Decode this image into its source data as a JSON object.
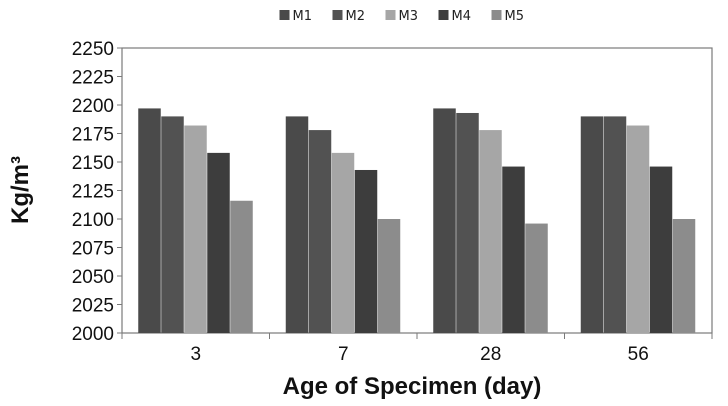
{
  "chart_data": {
    "type": "bar",
    "title": "",
    "xlabel": "Age of Specimen (day)",
    "ylabel": "Kg/m³",
    "categories": [
      "3",
      "7",
      "28",
      "56"
    ],
    "ylim": [
      2000,
      2250
    ],
    "yticks": [
      2000,
      2025,
      2050,
      2075,
      2100,
      2125,
      2150,
      2175,
      2200,
      2225,
      2250
    ],
    "grid": false,
    "legend": "top",
    "series": [
      {
        "name": "M1",
        "color": "#4a4a4a",
        "values": [
          2197,
          2190,
          2197,
          2190
        ]
      },
      {
        "name": "M2",
        "color": "#525252",
        "values": [
          2190,
          2178,
          2193,
          2190
        ]
      },
      {
        "name": "M3",
        "color": "#a6a6a6",
        "values": [
          2182,
          2158,
          2178,
          2182
        ]
      },
      {
        "name": "M4",
        "color": "#3d3d3d",
        "values": [
          2158,
          2143,
          2146,
          2146
        ]
      },
      {
        "name": "M5",
        "color": "#8c8c8c",
        "values": [
          2116,
          2100,
          2096,
          2100
        ]
      }
    ]
  }
}
